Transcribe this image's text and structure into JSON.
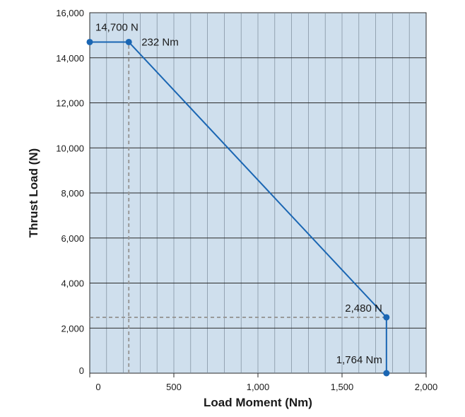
{
  "chart_data": {
    "type": "line",
    "title": "",
    "xlabel": "Load Moment (Nm)",
    "ylabel": "Thrust Load (N)",
    "xlim": [
      0,
      2000
    ],
    "ylim": [
      0,
      16000
    ],
    "x_ticks": [
      {
        "value": 0,
        "label": "0"
      },
      {
        "value": 500,
        "label": "500"
      },
      {
        "value": 1000,
        "label": "1,000"
      },
      {
        "value": 1500,
        "label": "1,500"
      },
      {
        "value": 2000,
        "label": "2,000"
      }
    ],
    "y_ticks": [
      {
        "value": 0,
        "label": "0"
      },
      {
        "value": 2000,
        "label": "2,000"
      },
      {
        "value": 4000,
        "label": "4,000"
      },
      {
        "value": 6000,
        "label": "6,000"
      },
      {
        "value": 8000,
        "label": "8,000"
      },
      {
        "value": 10000,
        "label": "10,000"
      },
      {
        "value": 12000,
        "label": "12,000"
      },
      {
        "value": 14000,
        "label": "14,000"
      },
      {
        "value": 16000,
        "label": "16,000"
      }
    ],
    "minor_x_step": 100,
    "major_y_step": 2000,
    "grid": true,
    "colors": {
      "plot_background": "#cfdfed",
      "line": "#1a66b3",
      "point": "#1a66b3",
      "minor_grid": "#7a8a99",
      "major_grid": "#2a2a2a",
      "guide": "#999999",
      "axis_text": "#1a1a1a"
    },
    "series": [
      {
        "points": [
          {
            "x": 0,
            "y": 14700
          },
          {
            "x": 232,
            "y": 14700
          },
          {
            "x": 1764,
            "y": 2480
          },
          {
            "x": 1764,
            "y": 0
          }
        ]
      }
    ],
    "guide_lines": [
      {
        "orientation": "vertical",
        "x": 232,
        "from": 0,
        "to": 14700
      },
      {
        "orientation": "horizontal",
        "y": 2480,
        "from": 0,
        "to": 1764
      }
    ],
    "annotations": [
      {
        "id": "ann-14700n",
        "text": "14,700 N",
        "x": 0,
        "y": 14700,
        "anchor": "start",
        "dx": 8,
        "dy": -16
      },
      {
        "id": "ann-232nm",
        "text": "232 Nm",
        "x": 232,
        "y": 14700,
        "anchor": "start",
        "dx": 18,
        "dy": 5
      },
      {
        "id": "ann-2480n",
        "text": "2,480 N",
        "x": 1764,
        "y": 2480,
        "anchor": "end",
        "dx": -6,
        "dy": -8
      },
      {
        "id": "ann-1764nm",
        "text": "1,764 Nm",
        "x": 1764,
        "y": 0,
        "anchor": "end",
        "dx": -6,
        "dy": -14
      }
    ]
  }
}
